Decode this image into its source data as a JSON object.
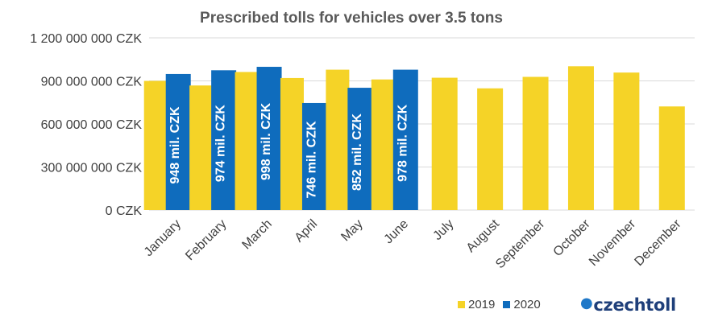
{
  "chart_data": {
    "type": "bar",
    "title": "Prescribed tolls for vehicles over 3.5 tons",
    "categories": [
      "January",
      "February",
      "March",
      "April",
      "May",
      "June",
      "July",
      "August",
      "September",
      "October",
      "November",
      "December"
    ],
    "series": [
      {
        "name": "2019",
        "color": "#f5d327",
        "values": [
          900000000,
          868000000,
          962000000,
          920000000,
          978000000,
          910000000,
          922000000,
          848000000,
          928000000,
          1002000000,
          958000000,
          722000000
        ]
      },
      {
        "name": "2020",
        "color": "#0f6cbd",
        "values": [
          948000000,
          974000000,
          998000000,
          746000000,
          852000000,
          978000000,
          null,
          null,
          null,
          null,
          null,
          null
        ],
        "data_labels": [
          "948 mil. CZK",
          "974 mil. CZK",
          "998 mil. CZK",
          "746 mil. CZK",
          "852 mil. CZK",
          "978 mil. CZK"
        ]
      }
    ],
    "ylim": [
      0,
      1200000000
    ],
    "yticks": [
      0,
      300000000,
      600000000,
      900000000,
      1200000000
    ],
    "ytick_labels": [
      "0 CZK",
      "300 000 000 CZK",
      "600 000 000 CZK",
      "900 000 000 CZK",
      "1 200 000 000 CZK"
    ],
    "grid": true,
    "legend_position": "bottom-right"
  },
  "legend": {
    "labels": [
      "2019",
      "2020"
    ]
  },
  "logo": {
    "text": "czechtoll"
  }
}
